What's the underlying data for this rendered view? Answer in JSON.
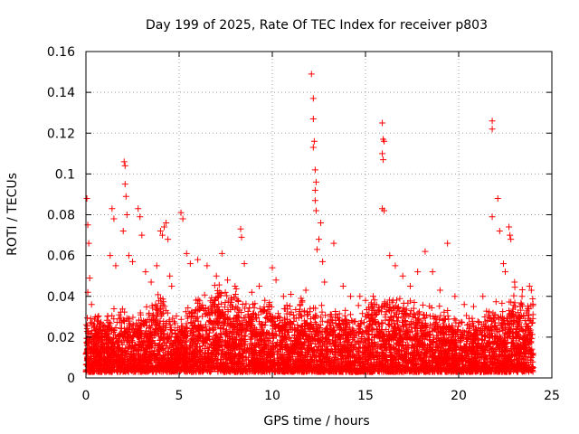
{
  "chart_data": {
    "type": "scatter",
    "title": "Day 199 of 2025, Rate Of TEC Index for receiver p803",
    "xlabel": "GPS time / hours",
    "ylabel": "ROTI / TECUs",
    "xlim": [
      0,
      25
    ],
    "ylim": [
      0,
      0.16
    ],
    "xticks": [
      0,
      5,
      10,
      15,
      20,
      25
    ],
    "yticks": [
      0,
      0.02,
      0.04,
      0.06,
      0.08,
      0.1,
      0.12,
      0.14,
      0.16
    ],
    "xtick_labels": [
      "0",
      "5",
      "10",
      "15",
      "20",
      "25"
    ],
    "ytick_labels": [
      "0",
      "0.02",
      "0.04",
      "0.06",
      "0.08",
      "0.1",
      "0.12",
      "0.14",
      "0.16"
    ],
    "grid": true,
    "marker": "+",
    "color": "#ff0000",
    "series": [
      {
        "points": [
          [
            0.05,
            0.088
          ],
          [
            0.1,
            0.075
          ],
          [
            0.15,
            0.066
          ],
          [
            0.2,
            0.049
          ],
          [
            0.1,
            0.042
          ],
          [
            0.3,
            0.036
          ],
          [
            0.5,
            0.03
          ],
          [
            0.7,
            0.025
          ],
          [
            1.4,
            0.083
          ],
          [
            1.5,
            0.078
          ],
          [
            1.3,
            0.06
          ],
          [
            1.6,
            0.055
          ],
          [
            2.05,
            0.106
          ],
          [
            2.1,
            0.104
          ],
          [
            2.1,
            0.095
          ],
          [
            2.15,
            0.089
          ],
          [
            2.2,
            0.08
          ],
          [
            2.0,
            0.072
          ],
          [
            2.3,
            0.06
          ],
          [
            2.5,
            0.057
          ],
          [
            2.8,
            0.083
          ],
          [
            2.9,
            0.079
          ],
          [
            3.0,
            0.07
          ],
          [
            3.2,
            0.052
          ],
          [
            3.5,
            0.047
          ],
          [
            3.8,
            0.055
          ],
          [
            4.0,
            0.072
          ],
          [
            4.1,
            0.07
          ],
          [
            4.2,
            0.074
          ],
          [
            4.3,
            0.076
          ],
          [
            4.4,
            0.068
          ],
          [
            4.5,
            0.05
          ],
          [
            4.6,
            0.045
          ],
          [
            5.1,
            0.081
          ],
          [
            5.2,
            0.078
          ],
          [
            5.4,
            0.061
          ],
          [
            5.6,
            0.056
          ],
          [
            6.0,
            0.058
          ],
          [
            6.5,
            0.055
          ],
          [
            7.0,
            0.05
          ],
          [
            7.3,
            0.061
          ],
          [
            7.6,
            0.048
          ],
          [
            8.0,
            0.045
          ],
          [
            8.3,
            0.073
          ],
          [
            8.35,
            0.069
          ],
          [
            8.5,
            0.056
          ],
          [
            8.9,
            0.042
          ],
          [
            9.3,
            0.045
          ],
          [
            9.6,
            0.038
          ],
          [
            10.0,
            0.054
          ],
          [
            10.2,
            0.048
          ],
          [
            10.6,
            0.04
          ],
          [
            11.0,
            0.041
          ],
          [
            11.5,
            0.036
          ],
          [
            11.8,
            0.043
          ],
          [
            12.1,
            0.149
          ],
          [
            12.2,
            0.137
          ],
          [
            12.2,
            0.127
          ],
          [
            12.25,
            0.116
          ],
          [
            12.2,
            0.113
          ],
          [
            12.3,
            0.102
          ],
          [
            12.35,
            0.096
          ],
          [
            12.3,
            0.092
          ],
          [
            12.3,
            0.087
          ],
          [
            12.35,
            0.082
          ],
          [
            12.6,
            0.076
          ],
          [
            12.5,
            0.068
          ],
          [
            12.4,
            0.063
          ],
          [
            12.7,
            0.057
          ],
          [
            12.8,
            0.047
          ],
          [
            13.3,
            0.066
          ],
          [
            13.8,
            0.045
          ],
          [
            14.2,
            0.04
          ],
          [
            14.7,
            0.04
          ],
          [
            15.0,
            0.038
          ],
          [
            15.3,
            0.036
          ],
          [
            15.9,
            0.125
          ],
          [
            15.95,
            0.117
          ],
          [
            16.0,
            0.116
          ],
          [
            15.9,
            0.11
          ],
          [
            15.95,
            0.107
          ],
          [
            15.9,
            0.083
          ],
          [
            16.0,
            0.082
          ],
          [
            16.3,
            0.06
          ],
          [
            16.6,
            0.055
          ],
          [
            17.0,
            0.05
          ],
          [
            17.4,
            0.045
          ],
          [
            17.8,
            0.052
          ],
          [
            18.2,
            0.062
          ],
          [
            18.6,
            0.052
          ],
          [
            19.0,
            0.043
          ],
          [
            19.4,
            0.066
          ],
          [
            19.8,
            0.04
          ],
          [
            20.3,
            0.036
          ],
          [
            20.8,
            0.035
          ],
          [
            21.3,
            0.04
          ],
          [
            21.8,
            0.126
          ],
          [
            21.8,
            0.122
          ],
          [
            21.8,
            0.079
          ],
          [
            22.1,
            0.088
          ],
          [
            22.2,
            0.072
          ],
          [
            22.4,
            0.056
          ],
          [
            22.5,
            0.052
          ],
          [
            22.7,
            0.074
          ],
          [
            22.75,
            0.07
          ],
          [
            22.8,
            0.068
          ],
          [
            23.0,
            0.047
          ],
          [
            23.4,
            0.04
          ],
          [
            23.8,
            0.045
          ],
          [
            23.9,
            0.043
          ]
        ]
      }
    ],
    "dense_band": {
      "x_range": [
        0,
        24
      ],
      "y_floor": 0.003,
      "y_ceiling_hours": [
        0,
        1,
        2,
        3,
        4,
        5,
        6,
        7,
        8,
        9,
        10,
        11,
        12,
        13,
        14,
        15,
        16,
        17,
        18,
        19,
        20,
        21,
        22,
        23,
        24
      ],
      "y_ceiling_values": [
        0.033,
        0.034,
        0.036,
        0.034,
        0.045,
        0.03,
        0.042,
        0.048,
        0.045,
        0.04,
        0.04,
        0.038,
        0.042,
        0.035,
        0.036,
        0.038,
        0.045,
        0.042,
        0.04,
        0.038,
        0.03,
        0.032,
        0.04,
        0.045,
        0.042
      ],
      "points_per_hour": 260
    }
  }
}
